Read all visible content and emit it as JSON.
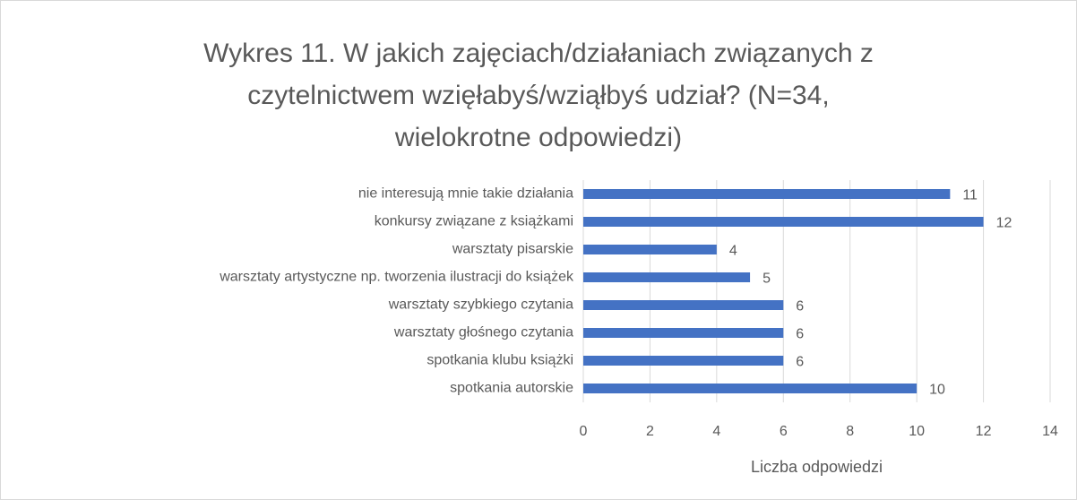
{
  "chart_data": {
    "type": "bar",
    "orientation": "horizontal",
    "title": "Wykres 11. W jakich zajęciach/działaniach związanych z czytelnictwem wzięłabyś/wziąłbyś udział? (N=34, wielokrotne odpowiedzi)",
    "categories": [
      "nie interesują mnie takie działania",
      "konkursy związane z książkami",
      "warsztaty pisarskie",
      "warsztaty artystyczne np. tworzenia ilustracji do książek",
      "warsztaty szybkiego czytania",
      "warsztaty głośnego czytania",
      "spotkania klubu książki",
      "spotkania autorskie"
    ],
    "values": [
      11,
      12,
      4,
      5,
      6,
      6,
      6,
      10
    ],
    "color": "#4472c4",
    "xlabel": "Liczba odpowiedzi",
    "xlim": [
      0,
      14
    ],
    "xticks": [
      0,
      2,
      4,
      6,
      8,
      10,
      12,
      14
    ],
    "grid": true
  }
}
